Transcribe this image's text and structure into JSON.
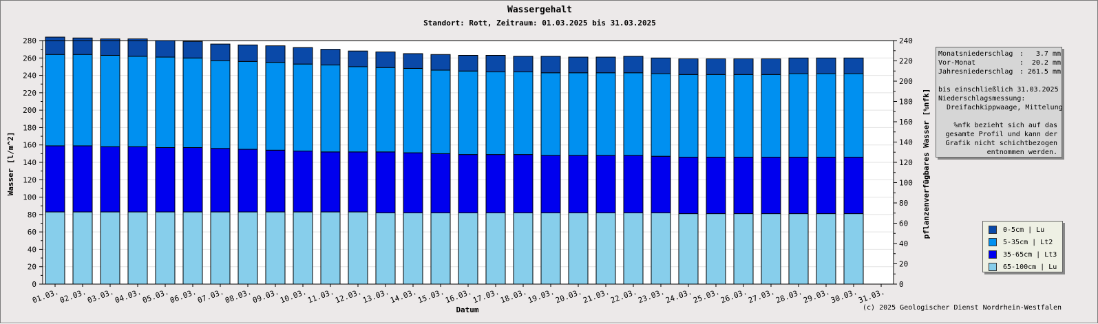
{
  "title": "Wassergehalt",
  "subtitle": "Standort: Rott, Zeitraum: 01.03.2025 bis 31.03.2025",
  "info": {
    "rows": [
      {
        "label": "Monatsniederschlag",
        "value": "3.7 mm"
      },
      {
        "label": "Vor-Monat",
        "value": "20.2 mm"
      },
      {
        "label": "Jahresniederschlag",
        "value": "261.5 mm"
      }
    ],
    "lines": [
      "bis einschließlich 31.03.2025",
      "Niederschlagsmessung:",
      "  Dreifachkippwaage, Mittelung"
    ],
    "note": [
      "%nfk bezieht sich auf das",
      "gesamte Profil und kann der",
      "Grafik nicht schichtbezogen",
      "entnommen werden."
    ]
  },
  "copyright": "(c) 2025 Geologischer Dienst Nordrhein-Westfalen",
  "chart_data": {
    "type": "bar",
    "stacked": true,
    "title": "Wassergehalt",
    "subtitle": "Standort: Rott, Zeitraum: 01.03.2025 bis 31.03.2025",
    "xlabel": "Datum",
    "ylabel": "Wasser [l/m^2]",
    "y2label": "pflanzenverfügbares Wasser [%nfk]",
    "ylim": [
      0,
      280
    ],
    "y2lim": [
      0,
      240
    ],
    "yticks": [
      0,
      20,
      40,
      60,
      80,
      100,
      120,
      140,
      160,
      180,
      200,
      220,
      240,
      260,
      280
    ],
    "y2ticks": [
      0,
      20,
      40,
      60,
      80,
      100,
      120,
      140,
      160,
      180,
      200,
      220,
      240
    ],
    "grid": true,
    "legend_position": "bottom-right",
    "categories": [
      "01.03.",
      "02.03.",
      "03.03.",
      "04.03.",
      "05.03.",
      "06.03.",
      "07.03.",
      "08.03.",
      "09.03.",
      "10.03.",
      "11.03.",
      "12.03.",
      "13.03.",
      "14.03.",
      "15.03.",
      "16.03.",
      "17.03.",
      "18.03.",
      "19.03.",
      "20.03.",
      "21.03.",
      "22.03.",
      "23.03.",
      "24.03.",
      "25.03.",
      "26.03.",
      "27.03.",
      "28.03.",
      "29.03.",
      "30.03.",
      "31.03."
    ],
    "series": [
      {
        "name": "65-100cm | Lu",
        "color": "#87ceeb",
        "values": [
          83,
          83,
          83,
          83,
          83,
          83,
          83,
          83,
          83,
          83,
          83,
          83,
          82,
          82,
          82,
          82,
          82,
          82,
          82,
          82,
          82,
          82,
          82,
          81,
          81,
          81,
          81,
          81,
          81,
          81,
          null
        ]
      },
      {
        "name": "35-65cm | Lt3",
        "color": "#0000ee",
        "values": [
          76,
          76,
          75,
          75,
          74,
          74,
          73,
          72,
          71,
          70,
          69,
          69,
          70,
          69,
          68,
          67,
          67,
          67,
          66,
          66,
          66,
          66,
          65,
          65,
          65,
          65,
          65,
          65,
          65,
          65,
          null
        ]
      },
      {
        "name": "5-35cm | Lt2",
        "color": "#0090f0",
        "values": [
          105,
          105,
          105,
          104,
          104,
          103,
          101,
          101,
          101,
          100,
          100,
          98,
          97,
          97,
          96,
          96,
          95,
          95,
          95,
          95,
          95,
          95,
          95,
          95,
          95,
          95,
          95,
          96,
          96,
          96,
          null
        ]
      },
      {
        "name": "0-5cm | Lu",
        "color": "#0a49a8",
        "values": [
          20,
          19,
          19,
          20,
          19,
          19,
          19,
          19,
          19,
          19,
          18,
          18,
          18,
          17,
          18,
          18,
          19,
          18,
          19,
          18,
          18,
          19,
          18,
          18,
          18,
          18,
          18,
          18,
          18,
          18,
          null
        ]
      }
    ]
  }
}
